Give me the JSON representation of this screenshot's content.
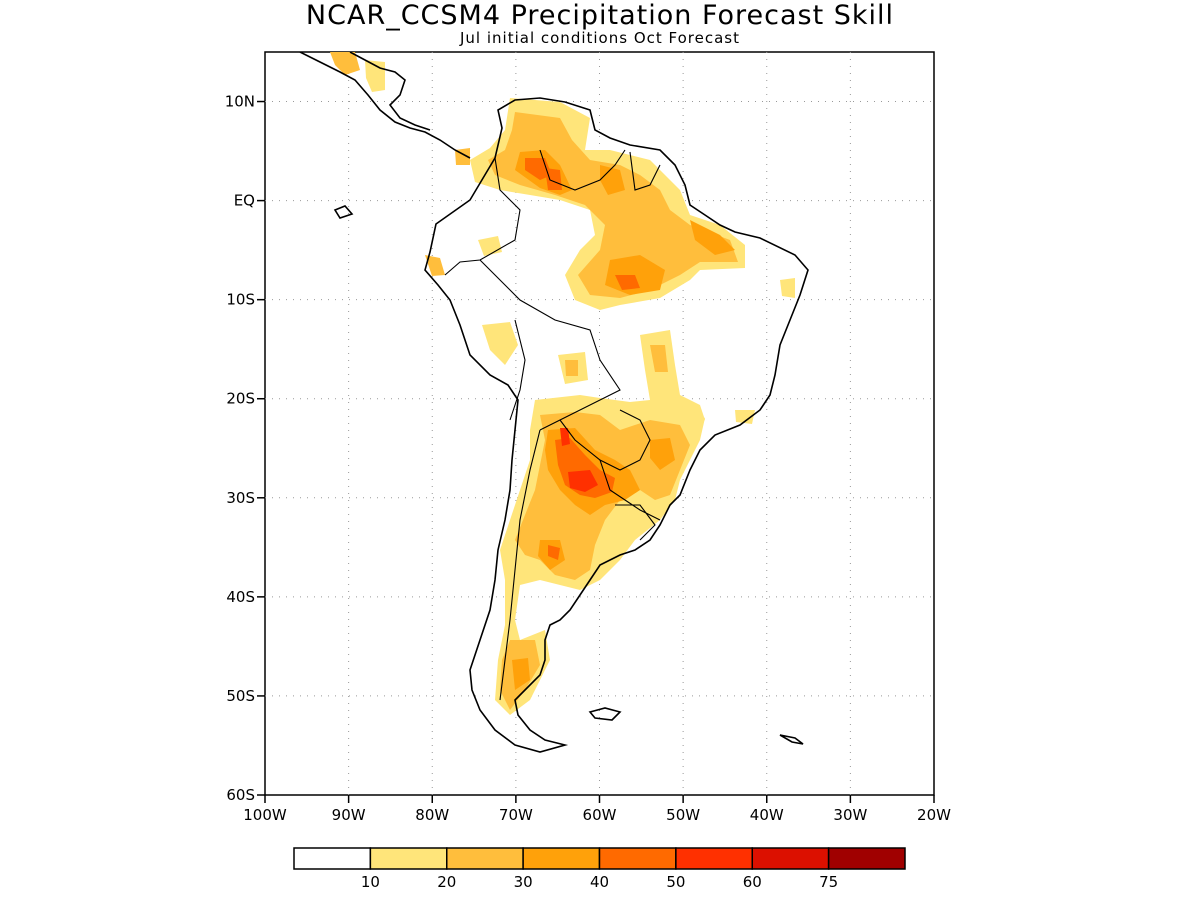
{
  "title": "NCAR_CCSM4 Precipitation Forecast Skill",
  "subtitle": "Jul initial conditions  Oct Forecast",
  "map": {
    "projection": "lat-lon",
    "lon_range": [
      -100,
      -20
    ],
    "lat_range": [
      -60,
      15
    ],
    "gridlines": "dotted",
    "lat_labels": [
      "10N",
      "EQ",
      "10S",
      "20S",
      "30S",
      "40S",
      "50S",
      "60S"
    ],
    "lon_labels": [
      "100W",
      "90W",
      "80W",
      "70W",
      "60W",
      "50W",
      "40W",
      "30W",
      "20W"
    ]
  },
  "legend": {
    "labels": [
      "10",
      "20",
      "30",
      "40",
      "50",
      "60",
      "75"
    ],
    "colors": [
      "#ffffff",
      "#ffe57a",
      "#ffbe3c",
      "#ffa10a",
      "#ff6a00",
      "#ff3000",
      "#dc1000",
      "#a00000"
    ]
  },
  "colors": {
    "level1": "#ffe57a",
    "level2": "#ffbe3c",
    "level3": "#ffa10a",
    "level4": "#ff6a00",
    "level5": "#ff3000",
    "coast": "#000000"
  }
}
